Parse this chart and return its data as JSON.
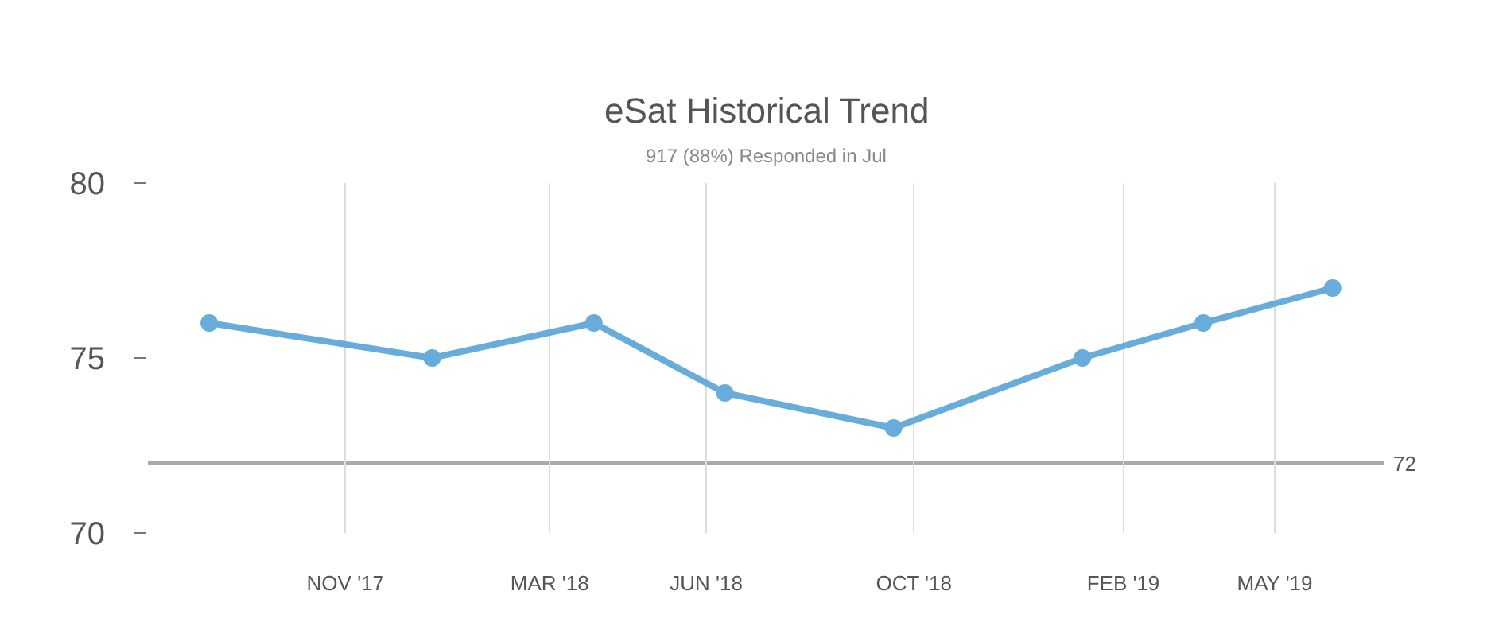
{
  "chart_data": {
    "type": "line",
    "title": "eSat Historical Trend",
    "subtitle": "917 (88%) Responded in Jul",
    "x": [
      "2017-08-13",
      "2017-12-22",
      "2018-03-27",
      "2018-06-12",
      "2018-09-19",
      "2019-01-08",
      "2019-03-20",
      "2019-06-04"
    ],
    "series": [
      {
        "color": "#67acdb",
        "values": [
          76,
          75,
          76,
          74,
          73,
          75,
          76,
          77
        ]
      }
    ],
    "xlim": [
      "2017-07-08",
      "2019-07-04"
    ],
    "xticks": [
      {
        "value": "2017-11-01",
        "label": "NOV '17"
      },
      {
        "value": "2018-03-01",
        "label": "MAR '18"
      },
      {
        "value": "2018-06-01",
        "label": "JUN '18"
      },
      {
        "value": "2018-10-01",
        "label": "OCT '18"
      },
      {
        "value": "2019-02-01",
        "label": "FEB '19"
      },
      {
        "value": "2019-05-01",
        "label": "MAY '19"
      }
    ],
    "ylim": [
      70,
      80
    ],
    "yticks": [
      70,
      75,
      80
    ],
    "ref_lines": [
      {
        "axis": "y",
        "value": 72,
        "label": "72",
        "color": "#aaaaaa"
      }
    ],
    "grid": "x",
    "marker": "circle",
    "line_style": "solid"
  }
}
